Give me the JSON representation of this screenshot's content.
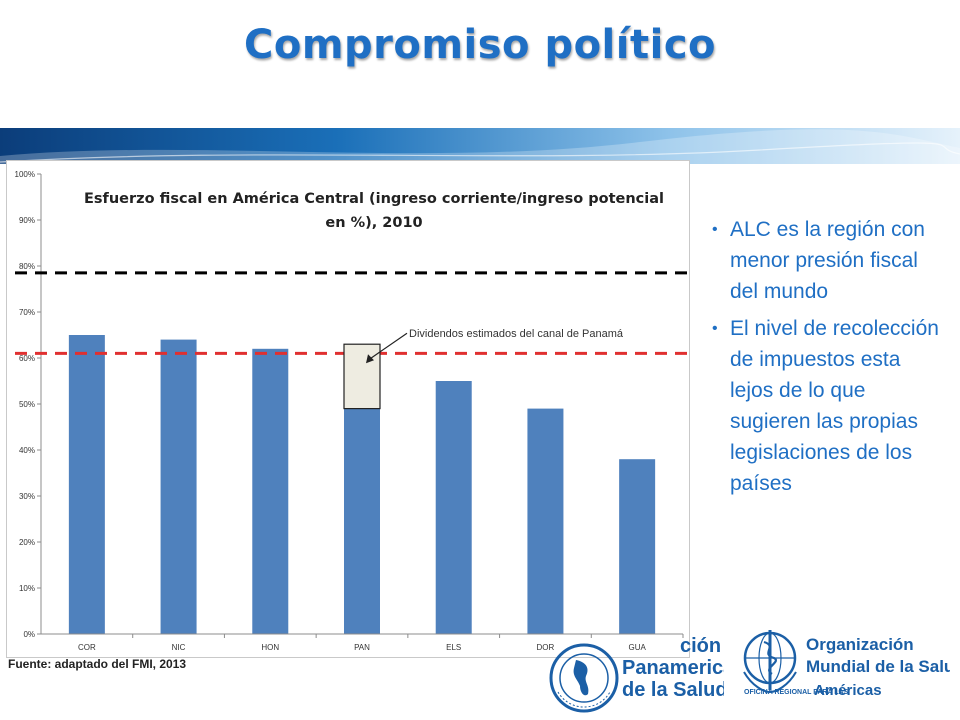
{
  "slide": {
    "title": "Compromiso político",
    "source": "Fuente: adaptado del FMI, 2013"
  },
  "bullets": [
    "ALC es la región con menor presión fiscal del mundo",
    "El nivel de recolección de impuestos esta lejos de lo que sugieren las propias legislaciones de los países"
  ],
  "logos": {
    "ops": {
      "line1": "ción",
      "line2": "Panamericana",
      "line3": "de la Salud"
    },
    "oms": {
      "line1": "Organización",
      "line2": "Mundial de la Salud",
      "line3": "OFICINA REGIONAL PARA LAS",
      "line4": "Américas"
    }
  },
  "colors": {
    "accent": "#1f6fc4",
    "bar": "#4f81bd",
    "red_line": "#e03030",
    "black_line": "#000000"
  },
  "chart_data": {
    "type": "bar",
    "title": "Esfuerzo fiscal en América Central (ingreso corriente/ingreso potencial en %), 2010",
    "title_lines": [
      "Esfuerzo fiscal en América Central (ingreso corriente/ingreso potencial",
      "en %), 2010"
    ],
    "categories": [
      "COR",
      "NIC",
      "HON",
      "PAN",
      "ELS",
      "DOR",
      "GUA"
    ],
    "values": [
      65,
      64,
      62,
      49,
      55,
      49,
      38
    ],
    "y_unit": "%",
    "ylim": [
      0,
      100
    ],
    "yticks": [
      "0%",
      "10%",
      "20%",
      "30%",
      "40%",
      "50%",
      "60%",
      "70%",
      "80%",
      "90%",
      "100%"
    ],
    "reference_lines": [
      {
        "value": 61,
        "color": "#e03030",
        "style": "dashed"
      },
      {
        "value": 78.5,
        "color": "#000000",
        "style": "dashed"
      }
    ],
    "annotation": {
      "text": "Dividendos estimados del canal de Panamá",
      "category": "PAN",
      "from": 49,
      "to": 63
    },
    "grid": false,
    "legend": "none"
  }
}
